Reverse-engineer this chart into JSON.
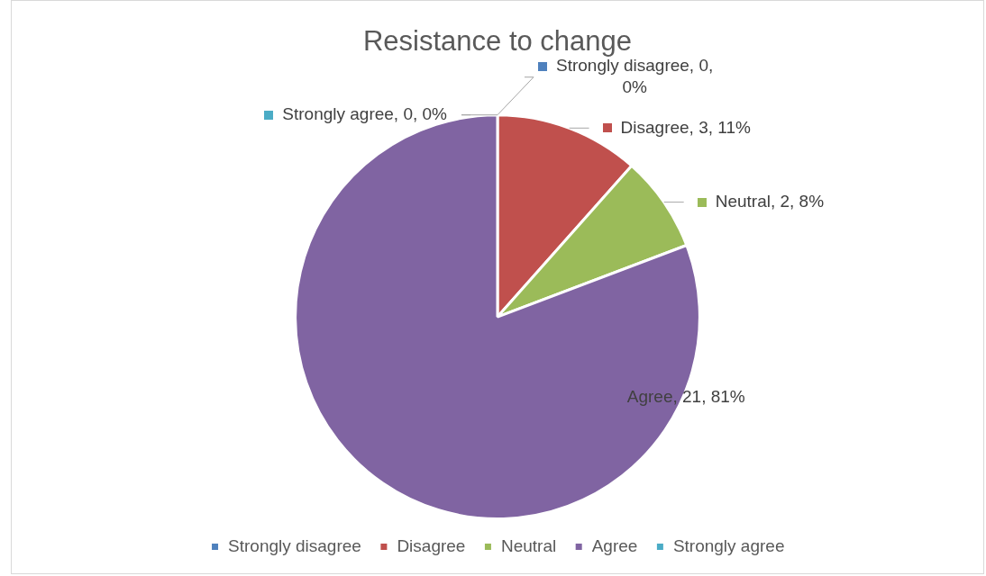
{
  "chart_data": {
    "type": "pie",
    "title": "Resistance to change",
    "categories": [
      "Strongly disagree",
      "Disagree",
      "Neutral",
      "Agree",
      "Strongly agree"
    ],
    "values": [
      0,
      3,
      2,
      21,
      0
    ],
    "colors": [
      "#4f81bd",
      "#c0504d",
      "#9bbb59",
      "#8064a2",
      "#4bacc6"
    ],
    "value_labels": [
      "Strongly disagree, 0, 0%",
      "Disagree, 3, 11%",
      "Neutral, 2, 8%",
      "Agree, 21, 81%",
      "Strongly agree, 0, 0%"
    ],
    "legend": "bottom"
  }
}
